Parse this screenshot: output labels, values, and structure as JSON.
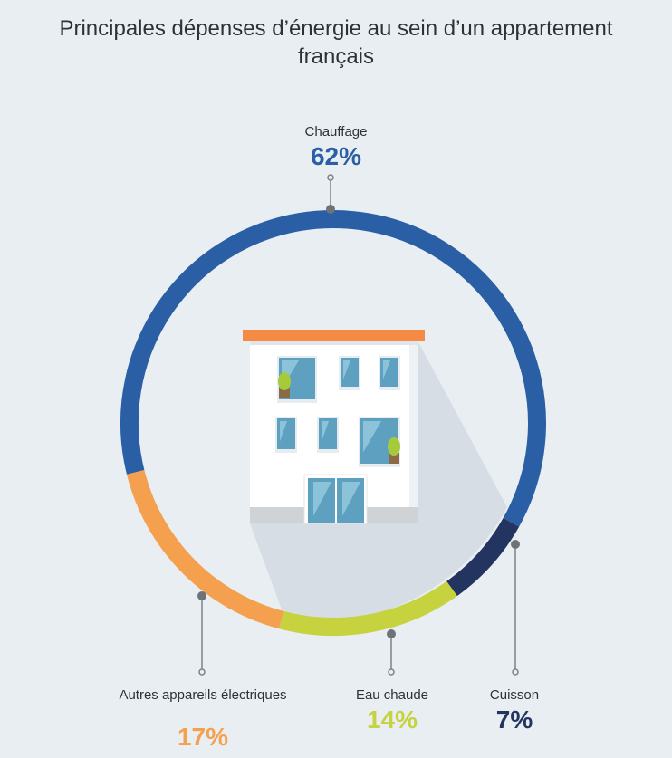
{
  "chart_data": {
    "type": "pie",
    "title": "Principales dépenses d’énergie au sein d’un appartement français",
    "slices": [
      {
        "label": "Chauffage",
        "value": 62,
        "value_label": "62%",
        "color": "#2a5fa5"
      },
      {
        "label": "Cuisson",
        "value": 7,
        "value_label": "7%",
        "color": "#233461"
      },
      {
        "label": "Eau chaude",
        "value": 14,
        "value_label": "14%",
        "color": "#c6d23e"
      },
      {
        "label": "Autres appareils électriques",
        "value": 17,
        "value_label": "17%",
        "color": "#f4a04f"
      }
    ],
    "style": "donut"
  },
  "colors": {
    "background": "#e8eef2",
    "building_roof": "#f58a45",
    "building_wall": "#ffffff",
    "window_glass": "#8cc3d8",
    "plant": "#a7c93c"
  },
  "icons": [
    "apartment-building-illustration",
    "plant-icon"
  ]
}
